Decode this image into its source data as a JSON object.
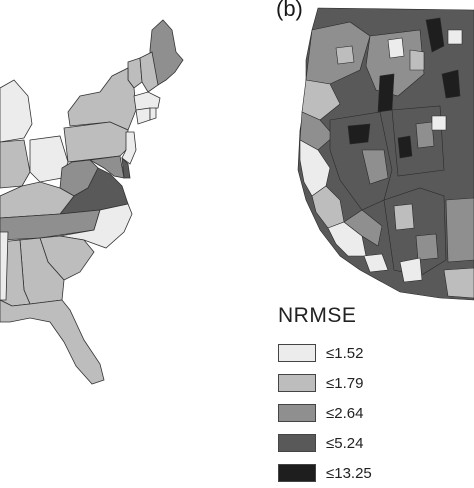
{
  "panel_label": "(b)",
  "legend": {
    "title": "NRMSE",
    "items": [
      {
        "label": "≤1.52",
        "color": "#ececec"
      },
      {
        "label": "≤1.79",
        "color": "#bdbdbd"
      },
      {
        "label": "≤2.64",
        "color": "#8f8f8f"
      },
      {
        "label": "≤5.24",
        "color": "#595959"
      },
      {
        "label": "≤13.25",
        "color": "#1e1e1e"
      }
    ]
  }
}
